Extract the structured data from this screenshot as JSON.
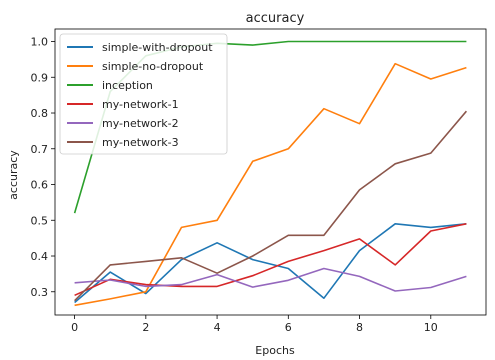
{
  "chart_data": {
    "type": "line",
    "title": "accuracy",
    "xlabel": "Epochs",
    "ylabel": "accuracy",
    "xlim": [
      -0.55,
      11.55
    ],
    "ylim": [
      0.235,
      1.035
    ],
    "xticks": [
      0,
      2,
      4,
      6,
      8,
      10
    ],
    "yticks": [
      0.3,
      0.4,
      0.5,
      0.6,
      0.7,
      0.8,
      0.9,
      1.0
    ],
    "ytick_labels": [
      "0.3",
      "0.4",
      "0.5",
      "0.6",
      "0.7",
      "0.8",
      "0.9",
      "1.0"
    ],
    "grid": false,
    "legend": "top-left",
    "x": [
      0,
      1,
      2,
      3,
      4,
      5,
      6,
      7,
      8,
      9,
      10,
      11
    ],
    "series": [
      {
        "name": "simple-with-dropout",
        "color": "#1f77b4",
        "values": [
          0.27,
          0.355,
          0.295,
          0.39,
          0.437,
          0.39,
          0.365,
          0.282,
          0.415,
          0.49,
          0.48,
          0.49
        ]
      },
      {
        "name": "simple-no-dropout",
        "color": "#ff7f0e",
        "values": [
          0.262,
          0.28,
          0.3,
          0.48,
          0.5,
          0.665,
          0.7,
          0.812,
          0.77,
          0.938,
          0.895,
          0.927
        ]
      },
      {
        "name": "inception",
        "color": "#2ca02c",
        "values": [
          0.52,
          0.86,
          0.96,
          0.985,
          0.995,
          0.99,
          1.0,
          1.0,
          1.0,
          1.0,
          1.0,
          1.0
        ]
      },
      {
        "name": "my-network-1",
        "color": "#d62728",
        "values": [
          0.29,
          0.335,
          0.32,
          0.315,
          0.315,
          0.345,
          0.385,
          0.415,
          0.448,
          0.375,
          0.47,
          0.49
        ]
      },
      {
        "name": "my-network-2",
        "color": "#9467bd",
        "values": [
          0.325,
          0.333,
          0.315,
          0.32,
          0.348,
          0.313,
          0.332,
          0.365,
          0.343,
          0.302,
          0.312,
          0.343
        ]
      },
      {
        "name": "my-network-3",
        "color": "#8c564b",
        "values": [
          0.275,
          0.375,
          0.385,
          0.395,
          0.352,
          0.4,
          0.458,
          0.458,
          0.585,
          0.658,
          0.688,
          0.805
        ]
      }
    ]
  }
}
